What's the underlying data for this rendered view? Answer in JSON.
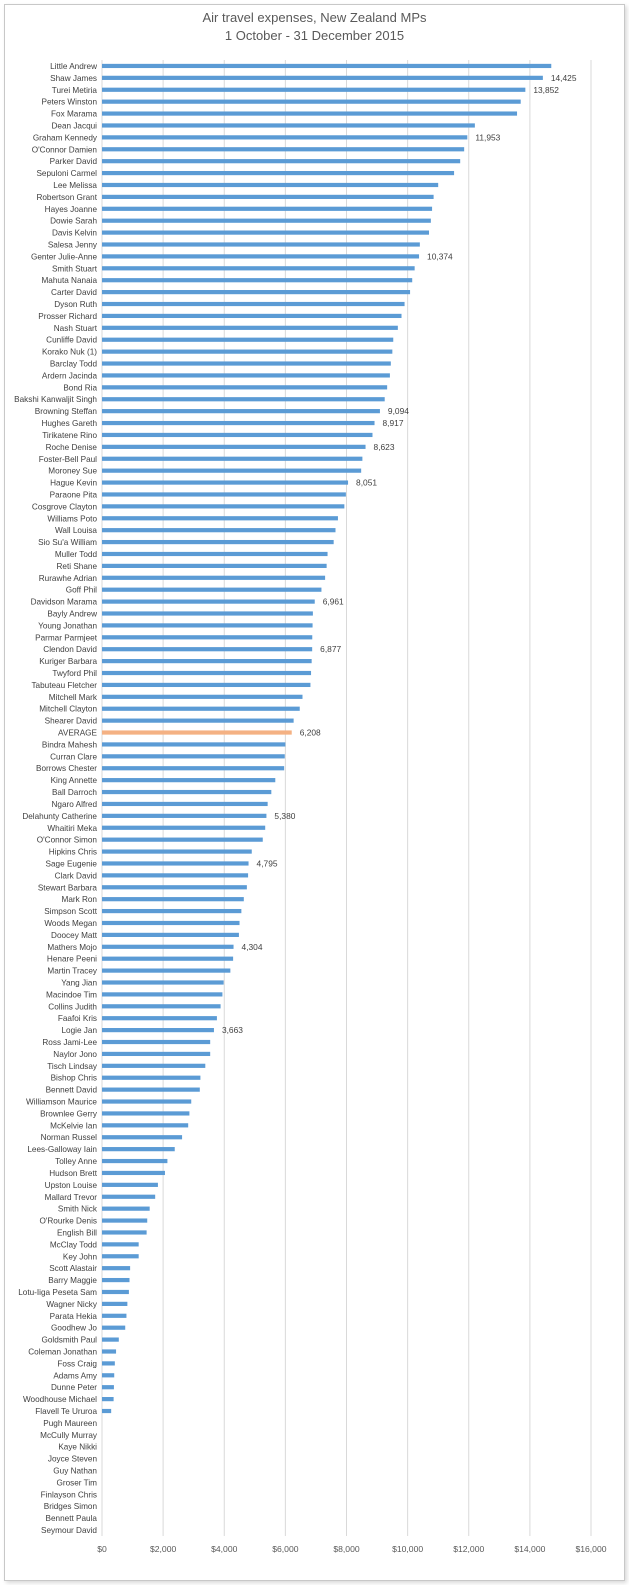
{
  "chart_data": {
    "type": "bar",
    "orientation": "horizontal",
    "title": "Air travel expenses, New Zealand MPs",
    "subtitle": "1 October - 31 December 2015",
    "xlim": [
      0,
      16000
    ],
    "x_ticks": [
      "$0",
      "$2,000",
      "$4,000",
      "$6,000",
      "$8,000",
      "$10,000",
      "$12,000",
      "$14,000",
      "$16,000"
    ],
    "grid": true,
    "colors": {
      "bar": "#5b9bd5",
      "average": "#f4b183",
      "grid": "#d9d9d9",
      "text": "#404040"
    },
    "categories": [
      "Little Andrew",
      "Shaw James",
      "Turei Metiria",
      "Peters Winston",
      "Fox Marama",
      "Dean Jacqui",
      "Graham Kennedy",
      "O'Connor Damien",
      "Parker David",
      "Sepuloni Carmel",
      "Lee Melissa",
      "Robertson Grant",
      "Hayes Joanne",
      "Dowie Sarah",
      "Davis Kelvin",
      "Salesa Jenny",
      "Genter Julie-Anne",
      "Smith Stuart",
      "Mahuta Nanaia",
      "Carter David",
      "Dyson Ruth",
      "Prosser Richard",
      "Nash Stuart",
      "Cunliffe David",
      "Korako Nuk (1)",
      "Barclay Todd",
      "Ardern Jacinda",
      "Bond Ria",
      "Bakshi Kanwaljit Singh",
      "Browning Steffan",
      "Hughes Gareth",
      "Tirikatene Rino",
      "Roche Denise",
      "Foster-Bell Paul",
      "Moroney Sue",
      "Hague Kevin",
      "Paraone Pita",
      "Cosgrove Clayton",
      "Williams Poto",
      "Wall Louisa",
      "Sio Su'a William",
      "Muller Todd",
      "Reti Shane",
      "Rurawhe Adrian",
      "Goff Phil",
      "Davidson Marama",
      "Bayly Andrew",
      "Young Jonathan",
      "Parmar Parmjeet",
      "Clendon David",
      "Kuriger Barbara",
      "Twyford Phil",
      "Tabuteau Fletcher",
      "Mitchell Mark",
      "Mitchell Clayton",
      "Shearer David",
      "AVERAGE",
      "Bindra Mahesh",
      "Curran Clare",
      "Borrows Chester",
      "King Annette",
      "Ball Darroch",
      "Ngaro Alfred",
      "Delahunty Catherine",
      "Whaitiri Meka",
      "O'Connor Simon",
      "Hipkins Chris",
      "Sage Eugenie",
      "Clark David",
      "Stewart Barbara",
      "Mark Ron",
      "Simpson Scott",
      "Woods Megan",
      "Doocey Matt",
      "Mathers Mojo",
      "Henare Peeni",
      "Martin Tracey",
      "Yang Jian",
      "Macindoe Tim",
      "Collins Judith",
      "Faafoi Kris",
      "Logie Jan",
      "Ross Jami-Lee",
      "Naylor Jono",
      "Tisch Lindsay",
      "Bishop Chris",
      "Bennett David",
      "Williamson Maurice",
      "Brownlee Gerry",
      "McKelvie Ian",
      "Norman Russel",
      "Lees-Galloway Iain",
      "Tolley Anne",
      "Hudson Brett",
      "Upston Louise",
      "Mallard Trevor",
      "Smith Nick",
      "O'Rourke Denis",
      "English Bill",
      "McClay Todd",
      "Key John",
      "Scott Alastair",
      "Barry Maggie",
      "Lotu-Iiga Peseta Sam",
      "Wagner Nicky",
      "Parata Hekia",
      "Goodhew Jo",
      "Goldsmith Paul",
      "Coleman Jonathan",
      "Foss Craig",
      "Adams Amy",
      "Dunne Peter",
      "Woodhouse Michael",
      "Flavell Te Ururoa",
      "Pugh Maureen",
      "McCully Murray",
      "Kaye Nikki",
      "Joyce Steven",
      "Guy Nathan",
      "Groser Tim",
      "Finlayson Chris",
      "Bridges Simon",
      "Bennett Paula",
      "Seymour David"
    ],
    "values": [
      14700,
      14425,
      13852,
      13700,
      13580,
      12200,
      11953,
      11850,
      11720,
      11520,
      11000,
      10850,
      10800,
      10760,
      10700,
      10400,
      10374,
      10230,
      10150,
      10080,
      9900,
      9800,
      9680,
      9530,
      9500,
      9450,
      9420,
      9330,
      9250,
      9094,
      8917,
      8850,
      8623,
      8520,
      8480,
      8051,
      7980,
      7930,
      7720,
      7640,
      7580,
      7380,
      7350,
      7300,
      7180,
      6961,
      6900,
      6890,
      6880,
      6877,
      6860,
      6840,
      6820,
      6560,
      6470,
      6270,
      6208,
      6000,
      5980,
      5960,
      5670,
      5540,
      5420,
      5380,
      5340,
      5260,
      4900,
      4795,
      4780,
      4740,
      4640,
      4560,
      4500,
      4480,
      4304,
      4290,
      4200,
      3980,
      3940,
      3880,
      3760,
      3663,
      3540,
      3540,
      3380,
      3220,
      3200,
      2920,
      2860,
      2820,
      2620,
      2380,
      2140,
      2060,
      1830,
      1740,
      1560,
      1480,
      1460,
      1200,
      1200,
      920,
      900,
      880,
      830,
      800,
      760,
      550,
      460,
      420,
      400,
      390,
      380,
      300,
      0,
      0,
      0,
      0,
      0,
      0,
      0,
      0,
      0,
      0
    ],
    "data_labels": [
      {
        "index": 1,
        "text": "14,425"
      },
      {
        "index": 2,
        "text": "13,852"
      },
      {
        "index": 6,
        "text": "11,953"
      },
      {
        "index": 16,
        "text": "10,374"
      },
      {
        "index": 29,
        "text": "9,094"
      },
      {
        "index": 30,
        "text": "8,917"
      },
      {
        "index": 32,
        "text": "8,623"
      },
      {
        "index": 35,
        "text": "8,051"
      },
      {
        "index": 45,
        "text": "6,961"
      },
      {
        "index": 49,
        "text": "6,877"
      },
      {
        "index": 56,
        "text": "6,208"
      },
      {
        "index": 63,
        "text": "5,380"
      },
      {
        "index": 67,
        "text": "4,795"
      },
      {
        "index": 74,
        "text": "4,304"
      },
      {
        "index": 81,
        "text": "3,663"
      }
    ],
    "highlight_category": "AVERAGE"
  }
}
